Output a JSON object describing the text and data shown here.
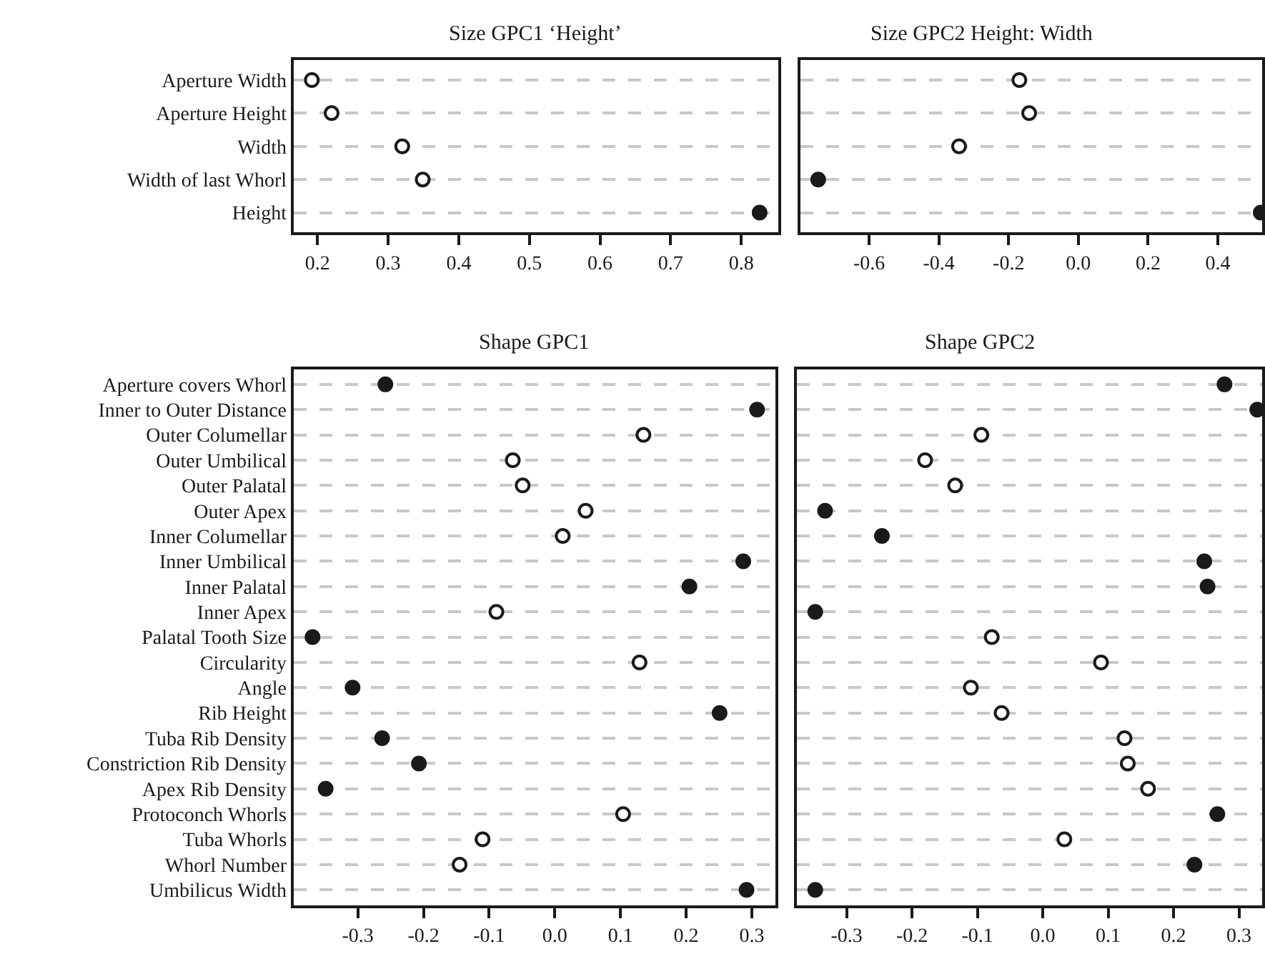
{
  "chart_data": [
    {
      "type": "scatter",
      "orientation": "horizontal",
      "title": "Size GPC1 ‘Height’",
      "categories": [
        "Aperture Width",
        "Aperture Height",
        "Width",
        "Width of last Whorl",
        "Height"
      ],
      "series": [
        {
          "color": "#ffffff",
          "values": [
            0.192,
            0.22,
            0.32,
            0.349,
            null
          ]
        },
        {
          "color": "#1a1a1a",
          "values": [
            null,
            null,
            null,
            null,
            0.826
          ]
        }
      ],
      "xlim": [
        0.166,
        0.852
      ],
      "xticks": [
        0.2,
        0.3,
        0.4,
        0.5,
        0.6,
        0.7,
        0.8
      ],
      "grid": "y",
      "marker": "circle"
    },
    {
      "type": "scatter",
      "orientation": "horizontal",
      "title": "Size GPC2 Height: Width",
      "categories": [
        "Aperture Width",
        "Aperture Height",
        "Width",
        "Width of last Whorl",
        "Height"
      ],
      "series": [
        {
          "color": "#ffffff",
          "values": [
            -0.169,
            -0.141,
            -0.342,
            null,
            null
          ]
        },
        {
          "color": "#1a1a1a",
          "values": [
            null,
            null,
            null,
            -0.746,
            0.523
          ]
        }
      ],
      "xlim": [
        -0.796,
        0.528
      ],
      "xticks": [
        {
          "value": -0.6,
          "label": "-0.6"
        },
        {
          "value": -0.4,
          "label": "-0.4"
        },
        {
          "value": -0.2,
          "label": "-0.2"
        },
        {
          "value": 0,
          "label": "0.0"
        },
        {
          "value": 0.2,
          "label": "0.2"
        },
        {
          "value": 0.4,
          "label": "0.4"
        }
      ],
      "grid": "y",
      "marker": "circle",
      "tick_labels": "x"
    },
    {
      "type": "scatter",
      "orientation": "horizontal",
      "title": "Shape GPC1",
      "categories": [
        "Aperture covers Whorl",
        "Inner to Outer Distance",
        "Outer Columellar",
        "Outer Umbilical",
        "Outer Palatal",
        "Outer Apex",
        "Inner Columellar",
        "Inner Umbilical",
        "Inner Palatal",
        "Inner Apex",
        "Palatal Tooth Size",
        "Circularity",
        "Angle",
        "Rib Height",
        "Tuba Rib Density",
        "Constriction Rib Density",
        "Apex Rib Density",
        "Protoconch Whorls",
        "Tuba Whorls",
        "Whorl Number",
        "Umbilicus Width"
      ],
      "series": [
        {
          "color": "#ffffff",
          "values": [
            null,
            null,
            0.135,
            -0.064,
            -0.049,
            0.047,
            0.012,
            null,
            null,
            -0.089,
            null,
            0.129,
            null,
            null,
            null,
            null,
            null,
            0.104,
            -0.11,
            -0.145,
            null
          ]
        },
        {
          "color": "#1a1a1a",
          "values": [
            -0.258,
            0.308,
            null,
            null,
            null,
            null,
            null,
            0.287,
            0.205,
            null,
            -0.369,
            null,
            -0.308,
            0.251,
            -0.263,
            -0.207,
            -0.349,
            null,
            null,
            null,
            0.292
          ]
        }
      ],
      "xlim": [
        -0.398,
        0.336
      ],
      "xticks": [
        {
          "value": -0.3,
          "label": "-0.3"
        },
        {
          "value": -0.2,
          "label": "-0.2"
        },
        {
          "value": -0.1,
          "label": "-0.1"
        },
        {
          "value": 0,
          "label": "0.0"
        },
        {
          "value": 0.1,
          "label": "0.1"
        },
        {
          "value": 0.2,
          "label": "0.2"
        },
        {
          "value": 0.3,
          "label": "0.3"
        }
      ],
      "grid": "y",
      "marker": "circle"
    },
    {
      "type": "scatter",
      "orientation": "horizontal",
      "title": "Shape GPC2",
      "categories": [
        "Aperture covers Whorl",
        "Inner to Outer Distance",
        "Outer Columellar",
        "Outer Umbilical",
        "Outer Palatal",
        "Outer Apex",
        "Inner Columellar",
        "Inner Umbilical",
        "Inner Palatal",
        "Inner Apex",
        "Palatal Tooth Size",
        "Circularity",
        "Angle",
        "Rib Height",
        "Tuba Rib Density",
        "Constriction Rib Density",
        "Apex Rib Density",
        "Protoconch Whorls",
        "Tuba Whorls",
        "Whorl Number",
        "Umbilicus Width"
      ],
      "series": [
        {
          "color": "#ffffff",
          "values": [
            null,
            null,
            -0.094,
            -0.18,
            -0.134,
            null,
            null,
            null,
            null,
            null,
            -0.078,
            0.089,
            -0.11,
            -0.063,
            0.125,
            0.13,
            0.161,
            null,
            0.033,
            null,
            null
          ]
        },
        {
          "color": "#1a1a1a",
          "values": [
            0.278,
            0.328,
            null,
            null,
            null,
            -0.333,
            -0.246,
            0.247,
            0.252,
            -0.348,
            null,
            null,
            null,
            null,
            null,
            null,
            null,
            0.267,
            null,
            0.232,
            -0.348
          ]
        }
      ],
      "xlim": [
        -0.376,
        0.336
      ],
      "xticks": [
        {
          "value": -0.3,
          "label": "-0.3"
        },
        {
          "value": -0.2,
          "label": "-0.2"
        },
        {
          "value": -0.1,
          "label": "-0.1"
        },
        {
          "value": 0,
          "label": "0.0"
        },
        {
          "value": 0.1,
          "label": "0.1"
        },
        {
          "value": 0.2,
          "label": "0.2"
        },
        {
          "value": 0.3,
          "label": "0.3"
        }
      ],
      "grid": "y",
      "marker": "circle",
      "tick_labels": "x"
    }
  ]
}
